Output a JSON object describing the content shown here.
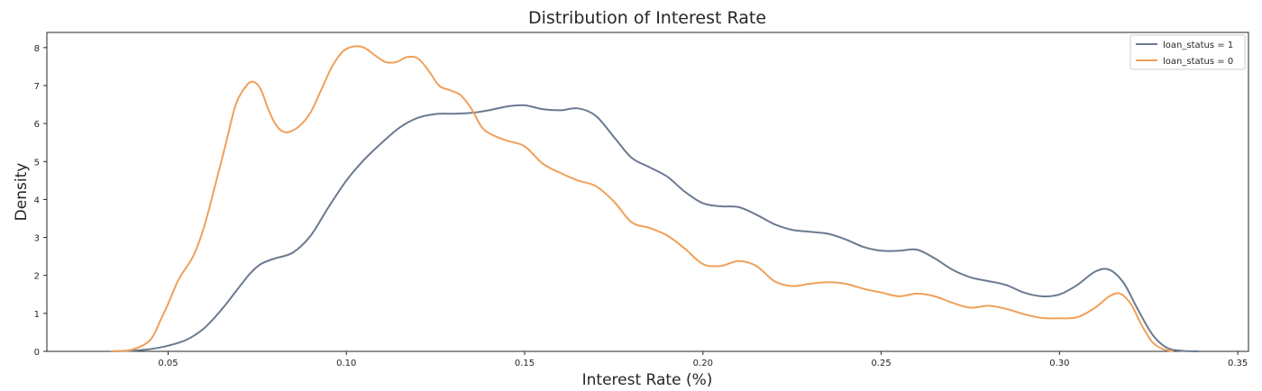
{
  "chart_data": {
    "type": "line",
    "title": "Distribution of Interest Rate",
    "xlabel": "Interest Rate (%)",
    "ylabel": "Density",
    "xlim": [
      0.016,
      0.353
    ],
    "ylim": [
      0,
      8.4
    ],
    "xticks": [
      0.05,
      0.1,
      0.15,
      0.2,
      0.25,
      0.3,
      0.35
    ],
    "xtick_labels": [
      "0.05",
      "0.10",
      "0.15",
      "0.20",
      "0.25",
      "0.30",
      "0.35"
    ],
    "yticks": [
      0,
      1,
      2,
      3,
      4,
      5,
      6,
      7,
      8
    ],
    "ytick_labels": [
      "0",
      "1",
      "2",
      "3",
      "4",
      "5",
      "6",
      "7",
      "8"
    ],
    "grid": false,
    "legend_position": "top-right",
    "series": [
      {
        "name": "loan_status = 1",
        "color": "#6b7a8f",
        "x": [
          0.034,
          0.04,
          0.045,
          0.05,
          0.055,
          0.06,
          0.065,
          0.07,
          0.073,
          0.076,
          0.08,
          0.085,
          0.09,
          0.095,
          0.1,
          0.105,
          0.11,
          0.115,
          0.12,
          0.125,
          0.13,
          0.135,
          0.14,
          0.145,
          0.15,
          0.155,
          0.16,
          0.165,
          0.17,
          0.175,
          0.18,
          0.185,
          0.19,
          0.195,
          0.2,
          0.205,
          0.21,
          0.215,
          0.22,
          0.225,
          0.23,
          0.235,
          0.24,
          0.245,
          0.25,
          0.255,
          0.26,
          0.265,
          0.27,
          0.275,
          0.28,
          0.285,
          0.29,
          0.295,
          0.3,
          0.305,
          0.31,
          0.314,
          0.318,
          0.322,
          0.326,
          0.33,
          0.334,
          0.339
        ],
        "y": [
          0.0,
          0.02,
          0.06,
          0.15,
          0.3,
          0.6,
          1.1,
          1.7,
          2.05,
          2.3,
          2.45,
          2.6,
          3.05,
          3.8,
          4.5,
          5.05,
          5.5,
          5.9,
          6.15,
          6.25,
          6.26,
          6.28,
          6.35,
          6.45,
          6.48,
          6.38,
          6.35,
          6.4,
          6.2,
          5.65,
          5.1,
          4.85,
          4.6,
          4.2,
          3.9,
          3.82,
          3.8,
          3.6,
          3.35,
          3.2,
          3.15,
          3.1,
          2.95,
          2.75,
          2.65,
          2.65,
          2.68,
          2.45,
          2.15,
          1.95,
          1.85,
          1.75,
          1.55,
          1.45,
          1.5,
          1.75,
          2.1,
          2.15,
          1.8,
          1.1,
          0.45,
          0.1,
          0.02,
          0.0
        ]
      },
      {
        "name": "loan_status = 0",
        "color": "#f0a05a",
        "x": [
          0.034,
          0.04,
          0.045,
          0.048,
          0.05,
          0.053,
          0.057,
          0.06,
          0.063,
          0.066,
          0.069,
          0.072,
          0.074,
          0.076,
          0.078,
          0.08,
          0.082,
          0.084,
          0.087,
          0.09,
          0.093,
          0.096,
          0.099,
          0.102,
          0.105,
          0.108,
          0.111,
          0.114,
          0.117,
          0.12,
          0.123,
          0.126,
          0.129,
          0.132,
          0.135,
          0.138,
          0.141,
          0.145,
          0.15,
          0.155,
          0.16,
          0.165,
          0.17,
          0.175,
          0.18,
          0.185,
          0.19,
          0.195,
          0.2,
          0.205,
          0.21,
          0.215,
          0.22,
          0.225,
          0.23,
          0.235,
          0.24,
          0.245,
          0.25,
          0.255,
          0.26,
          0.265,
          0.27,
          0.275,
          0.28,
          0.285,
          0.29,
          0.295,
          0.3,
          0.305,
          0.31,
          0.314,
          0.317,
          0.32,
          0.323,
          0.326,
          0.329,
          0.332
        ],
        "y": [
          0.0,
          0.05,
          0.3,
          0.85,
          1.25,
          1.9,
          2.5,
          3.25,
          4.3,
          5.4,
          6.5,
          7.0,
          7.1,
          6.9,
          6.4,
          6.0,
          5.8,
          5.78,
          5.95,
          6.3,
          6.9,
          7.5,
          7.9,
          8.03,
          8.0,
          7.8,
          7.62,
          7.62,
          7.75,
          7.72,
          7.4,
          7.0,
          6.88,
          6.75,
          6.4,
          5.9,
          5.7,
          5.55,
          5.4,
          4.95,
          4.7,
          4.5,
          4.35,
          3.95,
          3.4,
          3.25,
          3.05,
          2.7,
          2.3,
          2.25,
          2.38,
          2.25,
          1.85,
          1.72,
          1.78,
          1.82,
          1.78,
          1.65,
          1.55,
          1.45,
          1.52,
          1.45,
          1.28,
          1.15,
          1.2,
          1.12,
          0.98,
          0.88,
          0.87,
          0.9,
          1.15,
          1.45,
          1.52,
          1.25,
          0.7,
          0.25,
          0.06,
          0.0
        ]
      }
    ]
  }
}
